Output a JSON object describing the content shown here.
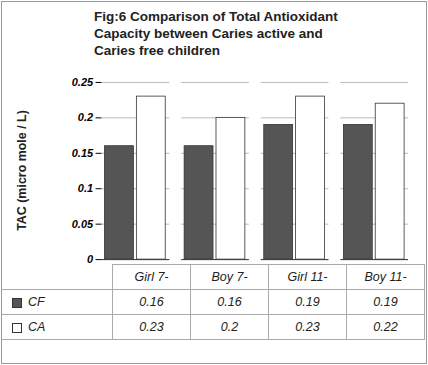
{
  "chart_data": {
    "type": "bar",
    "title": "Fig:6 Comparison of Total Antioxidant Capacity between Caries active and Caries free children",
    "y_label": "TAC (micro mole / L)",
    "categories": [
      "Girl 7-",
      "Boy 7-",
      "Girl 11-",
      "Boy 11-"
    ],
    "series": [
      {
        "name": "CF",
        "color": "#555555",
        "values": [
          0.16,
          0.16,
          0.19,
          0.19
        ]
      },
      {
        "name": "CA",
        "color": "#ffffff",
        "values": [
          0.23,
          0.2,
          0.23,
          0.22
        ]
      }
    ],
    "ylim": [
      0,
      0.25
    ],
    "yticks": [
      0,
      0.05,
      0.1,
      0.15,
      0.2,
      0.25
    ],
    "grid": true,
    "legend": "bottom"
  }
}
